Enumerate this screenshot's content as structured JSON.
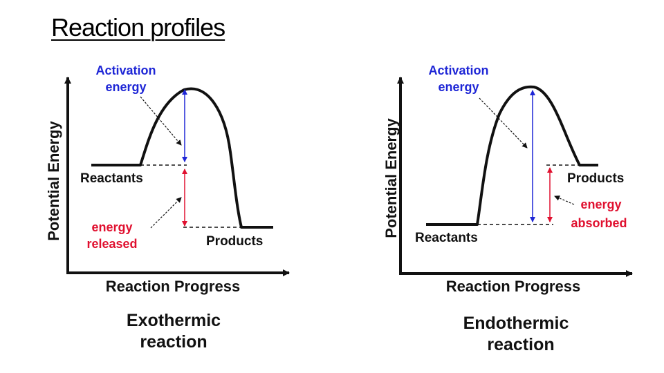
{
  "title": "Reaction profiles",
  "colors": {
    "activation": "#1e26d6",
    "energy_change": "#e0102f",
    "curve": "#111111"
  },
  "exothermic": {
    "y_axis_label": "Potential Energy",
    "x_axis_label": "Reaction Progress",
    "activation_label": [
      "Activation",
      "energy"
    ],
    "reactants_label": "Reactants",
    "products_label": "Products",
    "energy_change_label": [
      "energy",
      "released"
    ],
    "caption": [
      "Exothermic",
      "reaction"
    ]
  },
  "endothermic": {
    "y_axis_label": "Potential Energy",
    "x_axis_label": "Reaction Progress",
    "activation_label": [
      "Activation",
      "energy"
    ],
    "reactants_label": "Reactants",
    "products_label": "Products",
    "energy_change_label": [
      "energy",
      "absorbed"
    ],
    "caption": [
      "Endothermic",
      "reaction"
    ]
  }
}
